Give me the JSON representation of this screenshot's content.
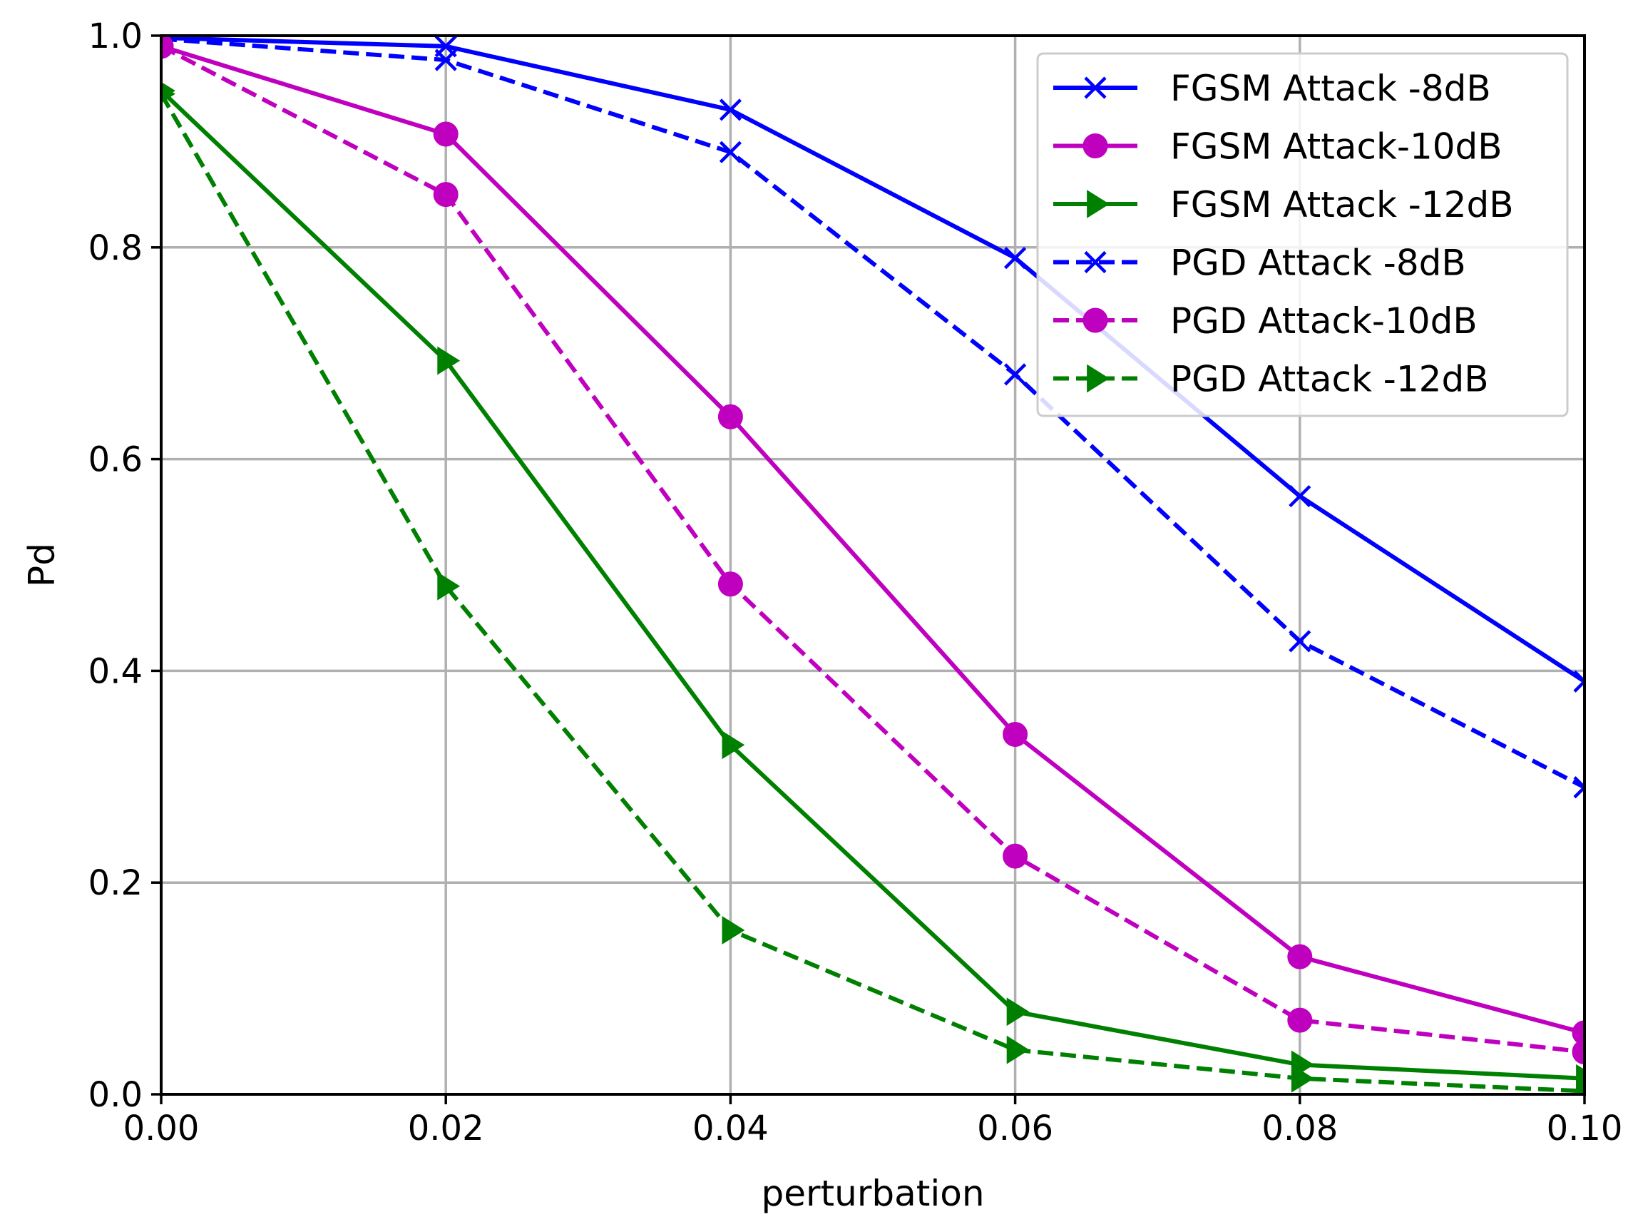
{
  "chart_data": {
    "type": "line",
    "title": "",
    "xlabel": "perturbation",
    "ylabel": "Pd",
    "xlim": [
      0,
      0.1
    ],
    "ylim": [
      0,
      1.0
    ],
    "xticks": [
      "0.00",
      "0.02",
      "0.04",
      "0.06",
      "0.08",
      "0.10"
    ],
    "yticks": [
      "0.0",
      "0.2",
      "0.4",
      "0.6",
      "0.8",
      "1.0"
    ],
    "grid": true,
    "legend_position": "top-right",
    "x": [
      0.0,
      0.02,
      0.04,
      0.06,
      0.08,
      0.1
    ],
    "series": [
      {
        "name": "FGSM Attack -8dB",
        "color": "#0000ff",
        "linestyle": "solid",
        "marker": "x",
        "values": [
          0.998,
          0.99,
          0.93,
          0.79,
          0.565,
          0.39
        ]
      },
      {
        "name": "FGSM Attack-10dB",
        "color": "#bf00bf",
        "linestyle": "solid",
        "marker": "circle",
        "values": [
          0.99,
          0.907,
          0.64,
          0.34,
          0.13,
          0.058
        ]
      },
      {
        "name": "FGSM Attack -12dB",
        "color": "#008000",
        "linestyle": "solid",
        "marker": "triangle-right",
        "values": [
          0.948,
          0.693,
          0.33,
          0.078,
          0.028,
          0.015
        ]
      },
      {
        "name": "PGD Attack -8dB",
        "color": "#0000ff",
        "linestyle": "dashed",
        "marker": "x",
        "values": [
          0.997,
          0.977,
          0.89,
          0.68,
          0.428,
          0.29
        ]
      },
      {
        "name": "PGD Attack-10dB",
        "color": "#bf00bf",
        "linestyle": "dashed",
        "marker": "circle",
        "values": [
          0.99,
          0.85,
          0.482,
          0.225,
          0.07,
          0.04
        ]
      },
      {
        "name": "PGD Attack -12dB",
        "color": "#008000",
        "linestyle": "dashed",
        "marker": "triangle-right",
        "values": [
          0.945,
          0.48,
          0.155,
          0.042,
          0.015,
          0.003
        ]
      }
    ]
  }
}
